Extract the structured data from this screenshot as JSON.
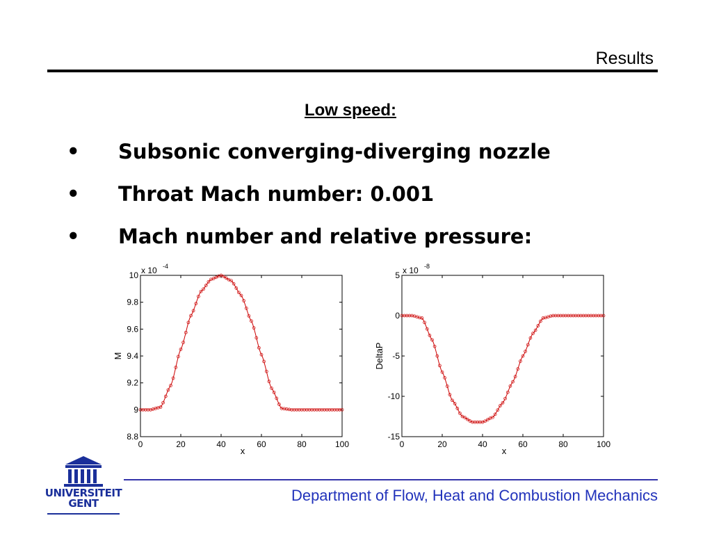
{
  "header": {
    "title": "Results"
  },
  "subtitle": "Low speed:",
  "bullets": [
    {
      "marker": "•",
      "text": "Subsonic converging-diverging nozzle"
    },
    {
      "marker": "•",
      "text": "Throat Mach number: 0.001"
    },
    {
      "marker": "•",
      "text": "Mach number and relative pressure:"
    }
  ],
  "chart_data": [
    {
      "type": "line",
      "xlabel": "x",
      "ylabel": "M",
      "y_multiplier": "x 10",
      "y_exponent": "-4",
      "xlim": [
        0,
        100
      ],
      "ylim": [
        8.8,
        10
      ],
      "xticks": [
        "0",
        "20",
        "40",
        "60",
        "80",
        "100"
      ],
      "yticks": [
        "8.8",
        "9",
        "9.2",
        "9.4",
        "9.6",
        "9.8",
        "10"
      ],
      "series_color": "#cc0000",
      "x": [
        0,
        5,
        10,
        15,
        20,
        25,
        30,
        35,
        40,
        45,
        50,
        55,
        60,
        65,
        70,
        75,
        80,
        85,
        90,
        95,
        100
      ],
      "y": [
        9.0,
        9.0,
        9.02,
        9.18,
        9.45,
        9.7,
        9.88,
        9.97,
        10.0,
        9.96,
        9.85,
        9.66,
        9.41,
        9.16,
        9.01,
        9.0,
        9.0,
        9.0,
        9.0,
        9.0,
        9.0
      ]
    },
    {
      "type": "line",
      "xlabel": "x",
      "ylabel": "DeltaP",
      "y_multiplier": "x 10",
      "y_exponent": "-8",
      "xlim": [
        0,
        100
      ],
      "ylim": [
        -15,
        5
      ],
      "xticks": [
        "0",
        "20",
        "40",
        "60",
        "80",
        "100"
      ],
      "yticks": [
        "-15",
        "-10",
        "-5",
        "0",
        "5"
      ],
      "series_color": "#cc0000",
      "x": [
        0,
        5,
        10,
        15,
        20,
        25,
        30,
        35,
        40,
        45,
        50,
        55,
        60,
        65,
        70,
        75,
        80,
        85,
        90,
        95,
        100
      ],
      "y": [
        0.0,
        0.0,
        -0.3,
        -3.0,
        -7.0,
        -10.5,
        -12.5,
        -13.2,
        -13.2,
        -12.6,
        -10.8,
        -8.2,
        -5.0,
        -2.2,
        -0.3,
        0.0,
        0.0,
        0.0,
        0.0,
        0.0,
        0.0
      ]
    }
  ],
  "footer": {
    "department": "Department of Flow, Heat and Combustion Mechanics"
  },
  "logo": {
    "line1": "UNIVERSITEIT",
    "line2": "GENT",
    "icon": "university-building-icon"
  }
}
